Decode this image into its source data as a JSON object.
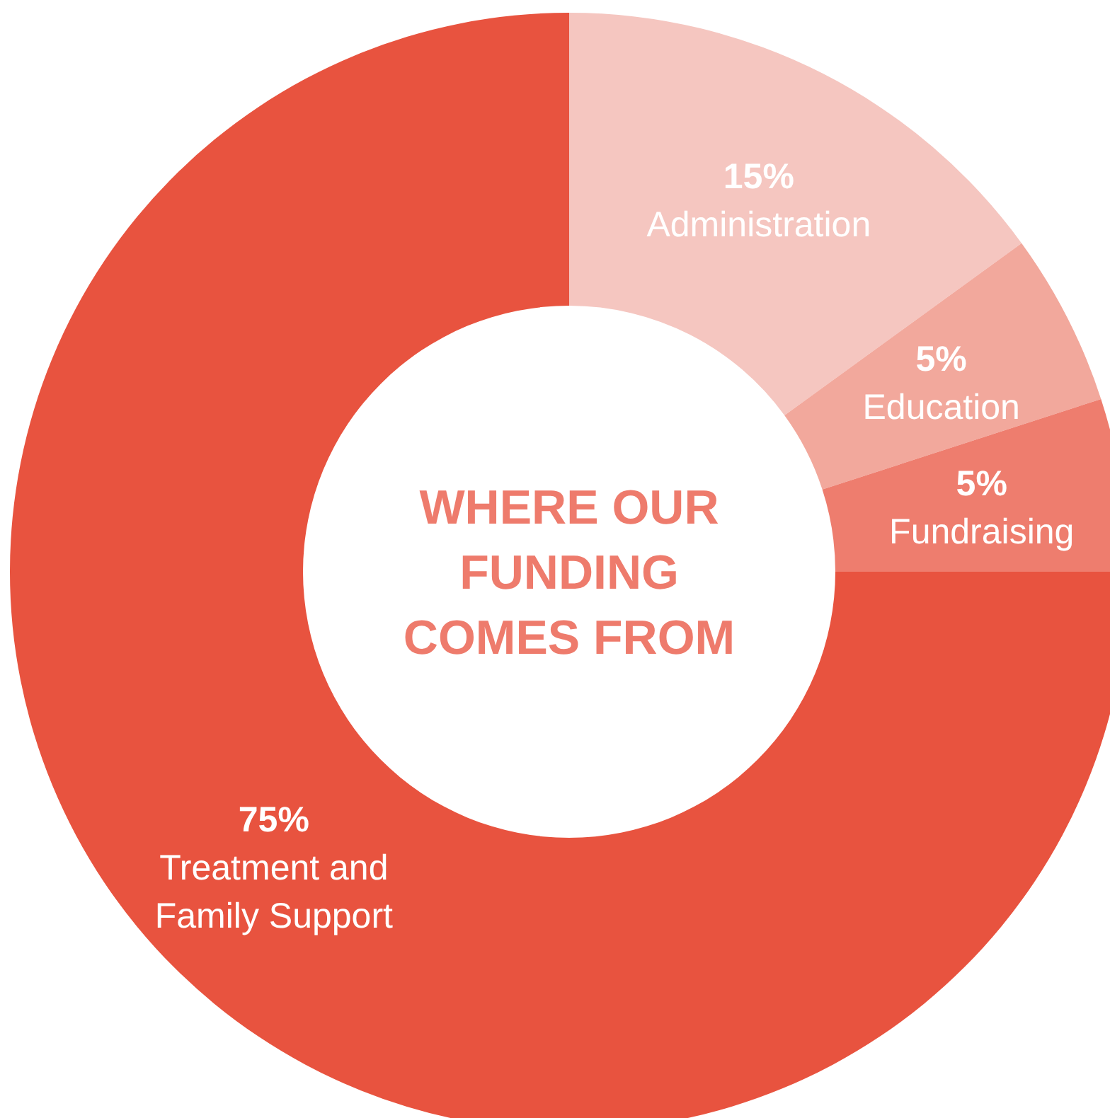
{
  "chart_data": {
    "type": "donut",
    "title": "WHERE OUR FUNDING COMES FROM",
    "categories": [
      "Administration",
      "Education",
      "Fundraising",
      "Treatment and Family Support"
    ],
    "values": [
      15,
      5,
      5,
      75
    ],
    "colors": [
      "#f5c6c0",
      "#f2a89c",
      "#ee7d6e",
      "#e8533f"
    ],
    "value_labels": [
      "15%",
      "5%",
      "5%",
      "75%"
    ]
  }
}
